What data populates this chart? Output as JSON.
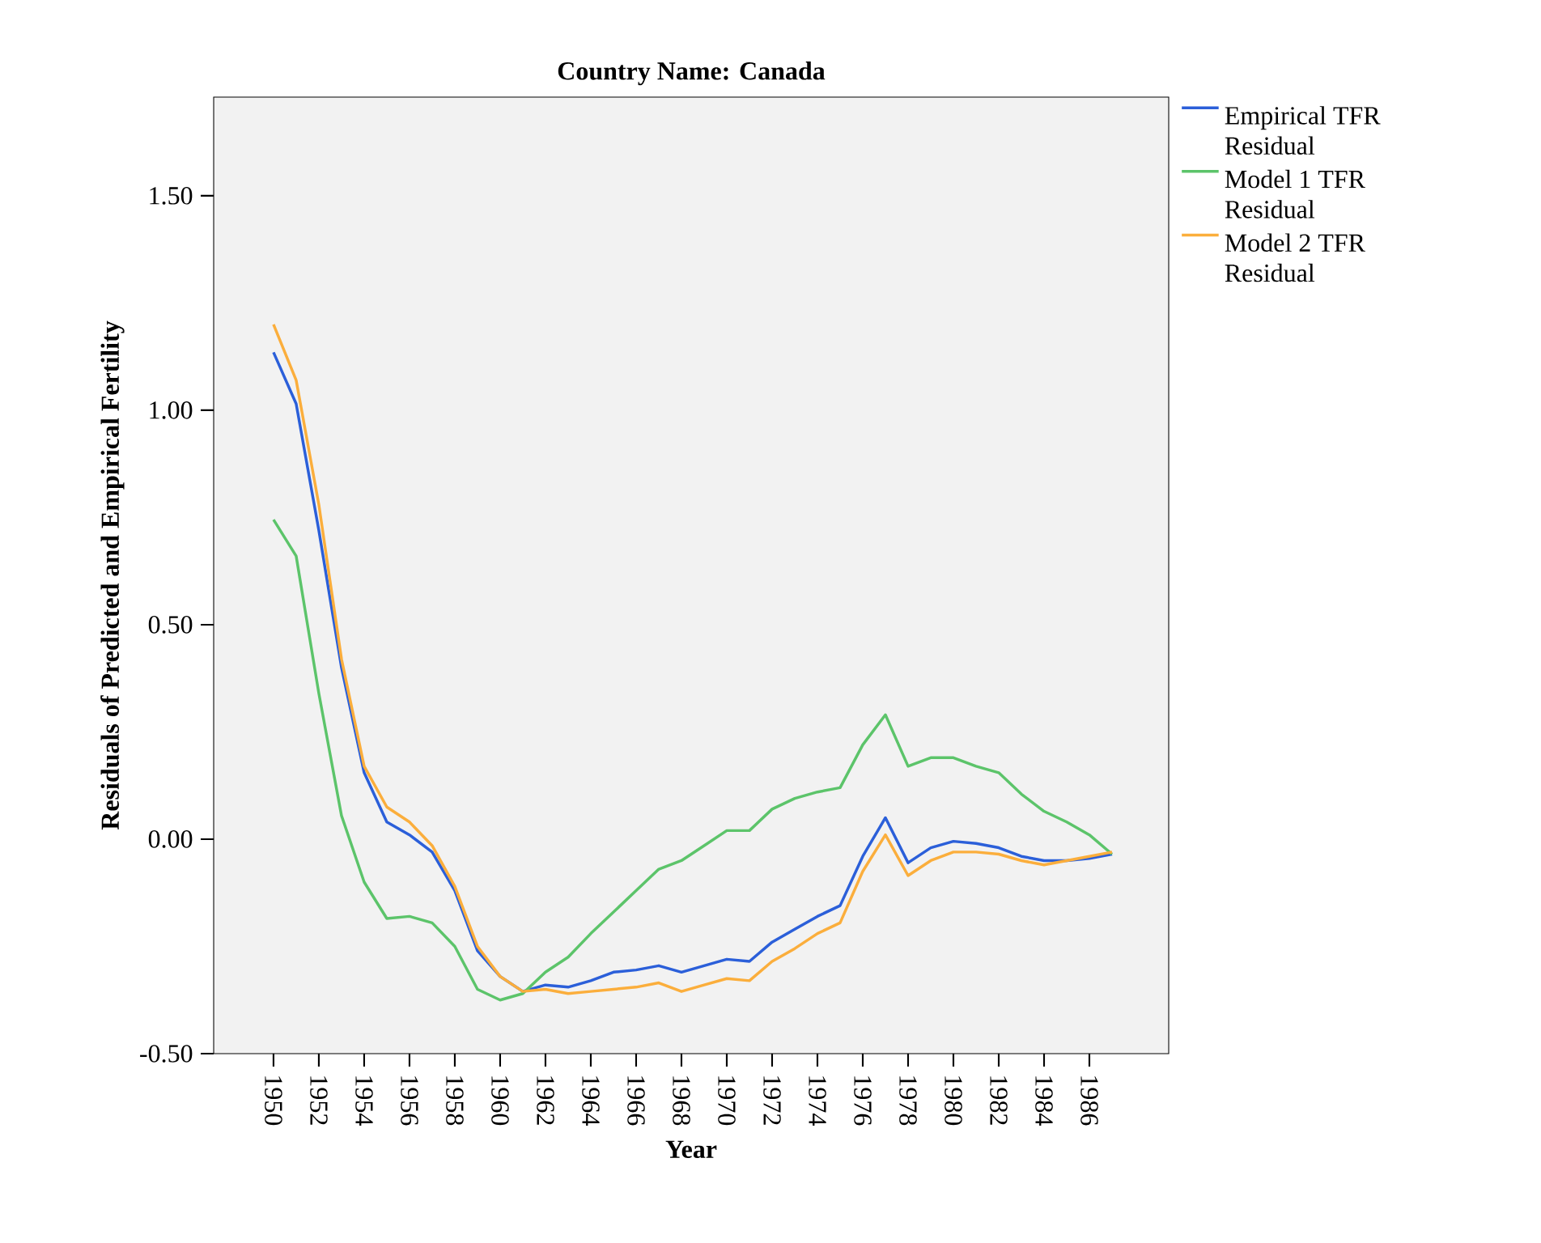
{
  "chart_data": {
    "type": "line",
    "title": "Country Name: Canada",
    "xlabel": "Year",
    "ylabel": "Residuals of Predicted and Empirical Fertility",
    "categories": [
      "1950",
      null,
      "1952",
      null,
      "1954",
      null,
      "1956",
      null,
      "1958",
      null,
      "1960",
      null,
      "1962",
      null,
      "1964",
      null,
      "1966",
      null,
      "1968",
      null,
      "1970",
      null,
      "1972",
      null,
      "1974",
      null,
      "1976",
      null,
      "1978",
      null,
      "1980",
      null,
      "1982",
      null,
      "1984",
      null,
      "1986",
      null
    ],
    "series": [
      {
        "name": "Empirical TFR Residual",
        "color": "#2b5fd9",
        "values": [
          1.135,
          1.015,
          0.72,
          0.4,
          0.155,
          0.04,
          0.01,
          -0.03,
          -0.12,
          -0.26,
          -0.32,
          -0.355,
          -0.34,
          -0.345,
          -0.33,
          -0.31,
          -0.305,
          -0.295,
          -0.31,
          -0.295,
          -0.28,
          -0.285,
          -0.24,
          -0.21,
          -0.18,
          -0.155,
          -0.04,
          0.05,
          -0.055,
          -0.02,
          -0.005,
          -0.01,
          -0.02,
          -0.04,
          -0.05,
          -0.05,
          -0.045,
          -0.035
        ]
      },
      {
        "name": "Model 1 TFR Residual",
        "color": "#5cc46a",
        "values": [
          0.745,
          0.66,
          0.34,
          0.055,
          -0.1,
          -0.185,
          -0.18,
          -0.195,
          -0.25,
          -0.35,
          -0.375,
          -0.36,
          -0.31,
          -0.275,
          -0.22,
          -0.17,
          -0.12,
          -0.07,
          -0.05,
          -0.015,
          0.02,
          0.02,
          0.07,
          0.095,
          0.11,
          0.12,
          0.22,
          0.29,
          0.17,
          0.19,
          0.19,
          0.17,
          0.155,
          0.105,
          0.065,
          0.04,
          0.01,
          -0.035
        ]
      },
      {
        "name": "Model 2 TFR Residual",
        "color": "#fbae3c",
        "values": [
          1.2,
          1.07,
          0.78,
          0.42,
          0.17,
          0.075,
          0.04,
          -0.015,
          -0.11,
          -0.25,
          -0.32,
          -0.355,
          -0.35,
          -0.36,
          -0.355,
          -0.35,
          -0.345,
          -0.335,
          -0.355,
          -0.34,
          -0.325,
          -0.33,
          -0.285,
          -0.255,
          -0.22,
          -0.195,
          -0.075,
          0.01,
          -0.085,
          -0.05,
          -0.03,
          -0.03,
          -0.035,
          -0.05,
          -0.06,
          -0.05,
          -0.04,
          -0.03
        ]
      }
    ],
    "ylim": [
      -0.5,
      1.73
    ],
    "yticks": [
      {
        "value": -0.5,
        "label": "-0.50"
      },
      {
        "value": 0,
        "label": "0.00"
      },
      {
        "value": 0.5,
        "label": "0.50"
      },
      {
        "value": 1,
        "label": "1.00"
      },
      {
        "value": 1.5,
        "label": "1.50"
      }
    ],
    "legend": "right",
    "grid": false,
    "marker": "none",
    "line_style": "solid"
  }
}
